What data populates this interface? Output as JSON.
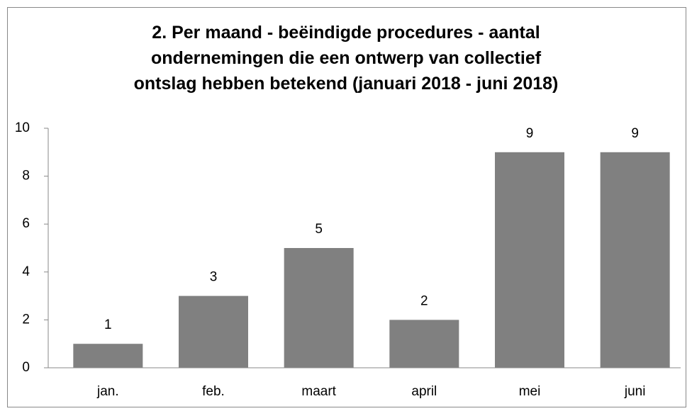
{
  "chart_data": {
    "type": "bar",
    "title": "2. Per maand - beëindigde procedures - aantal ondernemingen die een ontwerp van collectief ontslag hebben betekend (januari 2018 - juni 2018)",
    "categories": [
      "jan.",
      "feb.",
      "maart",
      "april",
      "mei",
      "juni"
    ],
    "values": [
      1,
      3,
      5,
      2,
      9,
      9
    ],
    "color": "#808080",
    "ylim": [
      0,
      10
    ],
    "yticks": [
      0,
      2,
      4,
      6,
      8,
      10
    ],
    "grid": false,
    "data_labels": true
  }
}
